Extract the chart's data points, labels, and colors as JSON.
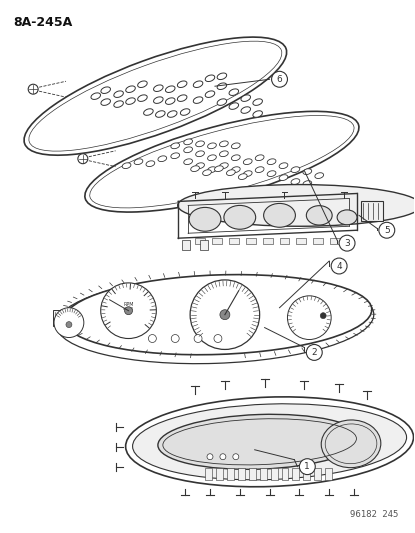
{
  "title": "8A-245A",
  "footnote": "96182 245",
  "bg_color": "#ffffff",
  "lc": "#333333",
  "fc_white": "#ffffff",
  "fc_light": "#f0f0f0",
  "fc_mid": "#e0e0e0",
  "fc_dark": "#cccccc"
}
